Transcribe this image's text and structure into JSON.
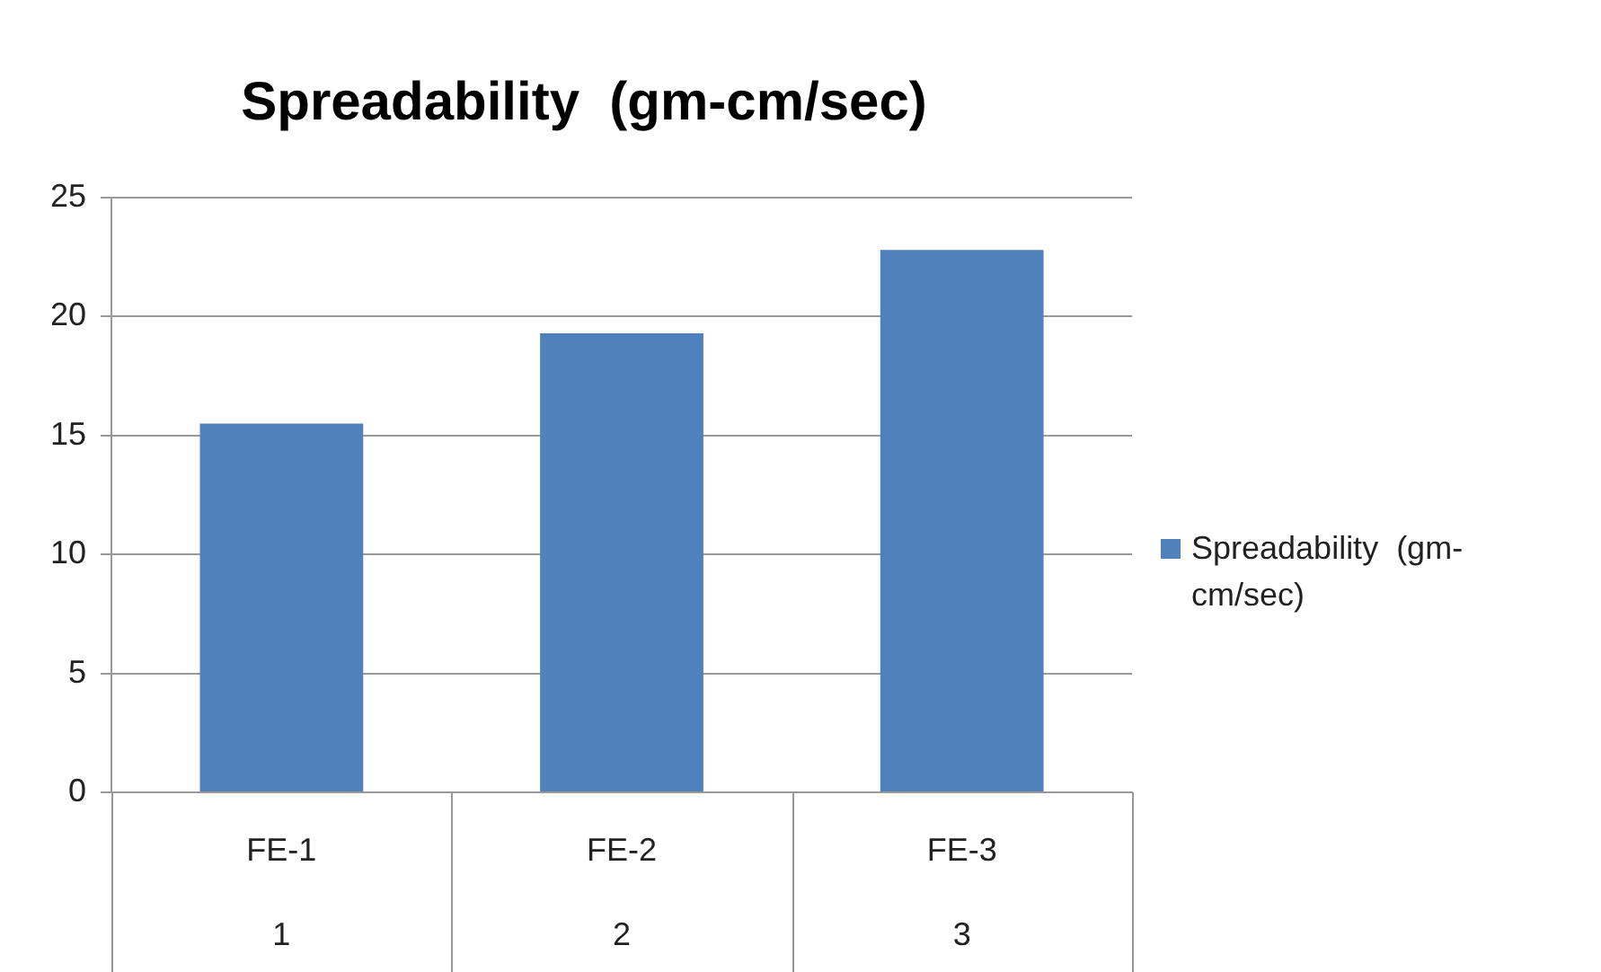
{
  "chart_data": {
    "type": "bar",
    "title": "Spreadability  (gm-cm/sec)",
    "categories": [
      "FE-1",
      "FE-2",
      "FE-3"
    ],
    "series": [
      {
        "name": "Spreadability  (gm-cm/sec)",
        "color": "#4f81bd",
        "values": [
          15.5,
          19.3,
          22.8
        ]
      }
    ],
    "annotations": [
      "1",
      "2",
      "3"
    ],
    "ylim": [
      0,
      25
    ],
    "yticks": [
      0,
      5,
      10,
      15,
      20,
      25
    ],
    "grid": "y",
    "legend": "right"
  }
}
